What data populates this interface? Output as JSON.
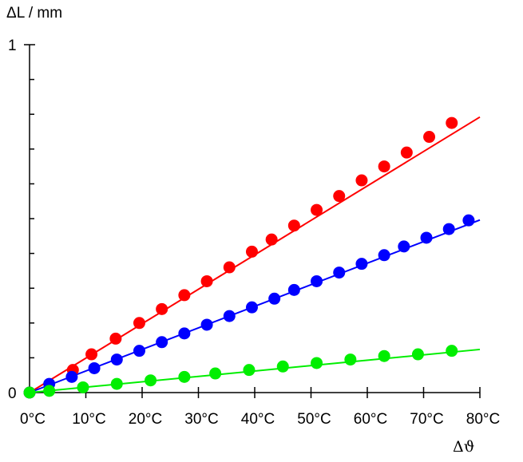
{
  "chart_data": {
    "type": "scatter",
    "title": "",
    "ylabel": "ΔL / mm",
    "xlabel": "Δϑ",
    "xlim": [
      0,
      80
    ],
    "ylim": [
      0,
      1
    ],
    "x_ticks": [
      0,
      10,
      20,
      30,
      40,
      50,
      60,
      70,
      80
    ],
    "x_tick_labels": [
      "0°C",
      "10°C",
      "20°C",
      "30°C",
      "40°C",
      "50°C",
      "60°C",
      "70°C",
      "80°C"
    ],
    "y_tick_labels": [
      {
        "value": 0,
        "label": "0"
      },
      {
        "value": 1,
        "label": "1"
      }
    ],
    "y_minor_ticks": [
      0.1,
      0.2,
      0.3,
      0.4,
      0.5,
      0.6,
      0.7,
      0.8,
      0.9
    ],
    "grid": false,
    "series": [
      {
        "color": "#ff0000",
        "fit_slope": 0.0099,
        "x": [
          0,
          7.7,
          11,
          15.3,
          19.5,
          23.5,
          27.5,
          31.5,
          35.5,
          39.5,
          43,
          47,
          51,
          55,
          59,
          63,
          67,
          71,
          75
        ],
        "y": [
          0,
          0.065,
          0.11,
          0.155,
          0.2,
          0.24,
          0.28,
          0.32,
          0.36,
          0.405,
          0.44,
          0.48,
          0.525,
          0.565,
          0.61,
          0.65,
          0.69,
          0.735,
          0.775
        ]
      },
      {
        "color": "#0000ff",
        "fit_slope": 0.0062,
        "x": [
          0,
          3.5,
          7.5,
          11.5,
          15.5,
          19.5,
          23.5,
          27.5,
          31.5,
          35.5,
          39.5,
          43.5,
          47,
          51,
          55,
          59,
          63,
          66.5,
          70.5,
          74.5,
          78
        ],
        "y": [
          0,
          0.025,
          0.045,
          0.07,
          0.095,
          0.12,
          0.145,
          0.17,
          0.195,
          0.22,
          0.245,
          0.27,
          0.295,
          0.32,
          0.345,
          0.37,
          0.395,
          0.42,
          0.445,
          0.47,
          0.495
        ]
      },
      {
        "color": "#00ee00",
        "fit_slope": 0.00155,
        "x": [
          0,
          3.5,
          9.5,
          15.5,
          21.5,
          27.5,
          33,
          39,
          45,
          51,
          57,
          63,
          69,
          75
        ],
        "y": [
          0,
          0.005,
          0.015,
          0.025,
          0.035,
          0.045,
          0.055,
          0.065,
          0.075,
          0.085,
          0.095,
          0.105,
          0.11,
          0.12
        ]
      }
    ]
  }
}
